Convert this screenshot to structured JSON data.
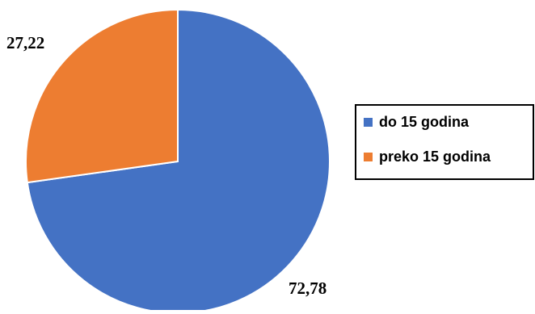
{
  "chart_data": {
    "type": "pie",
    "categories": [
      "do 15 godina",
      "preko 15 godina"
    ],
    "values": [
      72.78,
      27.22
    ],
    "data_labels": [
      "72,78",
      "27,22"
    ],
    "colors": [
      "#4472C4",
      "#ED7D31"
    ],
    "start_angle_deg": 0,
    "direction": "clockwise",
    "legend": {
      "placement": "right",
      "bordered": true,
      "items": [
        {
          "label": "do 15 godina",
          "color": "#4472C4"
        },
        {
          "label": "preko 15 godina",
          "color": "#ED7D31"
        }
      ]
    }
  }
}
